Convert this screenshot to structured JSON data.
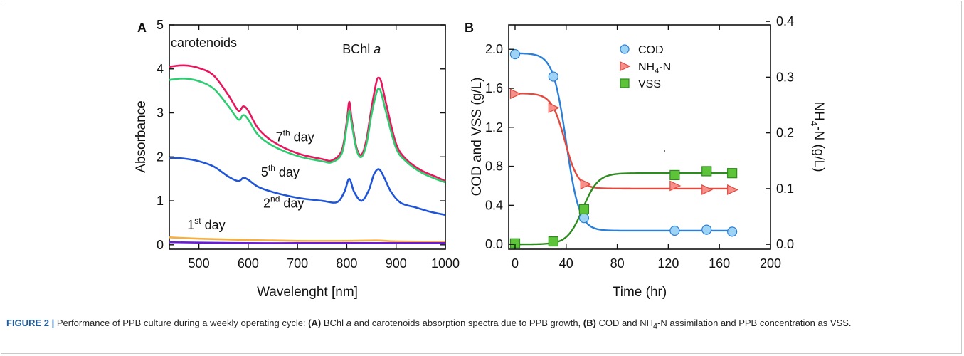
{
  "figure_label": "FIGURE 2 |",
  "caption_segments": [
    {
      "text": " Performance of PPB culture during a weekly operating cycle: ",
      "bold": false
    },
    {
      "text": "(A)",
      "bold": true
    },
    {
      "text": " BChl ",
      "bold": false
    },
    {
      "text": "a",
      "italic": true
    },
    {
      "text": " and carotenoids absorption spectra due to PPB growth, ",
      "bold": false
    },
    {
      "text": "(B)",
      "bold": true
    },
    {
      "text": " COD and NH",
      "bold": false
    },
    {
      "text": "4",
      "sub": true
    },
    {
      "text": "-N assimilation and PPB concentration as VSS.",
      "bold": false
    }
  ],
  "chart_data": [
    {
      "panel": "A",
      "type": "line",
      "xlabel": "Wavelenght [nm]",
      "ylabel": "Absorbance",
      "xlim": [
        440,
        1000
      ],
      "ylim": [
        -0.1,
        5
      ],
      "xticks": [
        500,
        600,
        700,
        800,
        900,
        1000
      ],
      "yticks": [
        0,
        1,
        2,
        3,
        4,
        5
      ],
      "annotations": [
        {
          "text": "carotenoids",
          "x": 510,
          "y": 4.5
        },
        {
          "text": "BChl ",
          "italic_suffix": "a",
          "x": 830,
          "y": 4.35
        },
        {
          "text": "7",
          "sup": "th",
          "suffix": " day",
          "x": 695,
          "y": 2.35
        },
        {
          "text": "5",
          "sup": "th",
          "suffix": " day",
          "x": 665,
          "y": 1.55
        },
        {
          "text": "2",
          "sup": "nd",
          "suffix": " day",
          "x": 672,
          "y": 0.85
        },
        {
          "text": "1",
          "sup": "st",
          "suffix": " day",
          "x": 515,
          "y": 0.35
        }
      ],
      "series": [
        {
          "color": "#e8175d",
          "x": [
            440,
            470,
            500,
            530,
            560,
            580,
            590,
            600,
            620,
            650,
            700,
            750,
            770,
            790,
            800,
            805,
            810,
            820,
            830,
            840,
            850,
            860,
            865,
            870,
            880,
            900,
            920,
            950,
            980,
            1000
          ],
          "y": [
            4.05,
            4.08,
            4.02,
            3.85,
            3.4,
            3.05,
            3.15,
            3.05,
            2.65,
            2.35,
            2.08,
            1.95,
            1.92,
            2.15,
            2.8,
            3.25,
            2.85,
            2.2,
            2.05,
            2.4,
            3.1,
            3.7,
            3.8,
            3.7,
            3.2,
            2.3,
            1.95,
            1.7,
            1.55,
            1.45
          ]
        },
        {
          "color": "#2ecc71",
          "x": [
            440,
            470,
            500,
            530,
            560,
            580,
            590,
            600,
            620,
            650,
            700,
            750,
            770,
            790,
            800,
            805,
            810,
            820,
            830,
            840,
            850,
            860,
            865,
            870,
            880,
            900,
            920,
            950,
            980,
            1000
          ],
          "y": [
            3.75,
            3.78,
            3.72,
            3.55,
            3.15,
            2.85,
            2.95,
            2.85,
            2.5,
            2.25,
            2.02,
            1.9,
            1.88,
            2.08,
            2.7,
            3.05,
            2.75,
            2.15,
            2.0,
            2.3,
            2.95,
            3.45,
            3.55,
            3.45,
            3.0,
            2.2,
            1.9,
            1.65,
            1.5,
            1.42
          ]
        },
        {
          "color": "#1f55d6",
          "x": [
            440,
            470,
            500,
            530,
            560,
            580,
            590,
            600,
            620,
            650,
            700,
            750,
            780,
            795,
            805,
            815,
            830,
            845,
            855,
            865,
            875,
            890,
            910,
            940,
            970,
            1000
          ],
          "y": [
            1.98,
            1.96,
            1.9,
            1.78,
            1.55,
            1.45,
            1.52,
            1.48,
            1.32,
            1.2,
            1.07,
            1.0,
            0.97,
            1.2,
            1.5,
            1.2,
            1.0,
            1.25,
            1.6,
            1.72,
            1.55,
            1.2,
            0.95,
            0.85,
            0.75,
            0.68
          ]
        },
        {
          "color": "#f5b041",
          "x": [
            440,
            500,
            600,
            700,
            800,
            860,
            900,
            1000
          ],
          "y": [
            0.17,
            0.14,
            0.11,
            0.09,
            0.09,
            0.1,
            0.08,
            0.07
          ]
        },
        {
          "color": "#6a1bd6",
          "x": [
            440,
            500,
            600,
            700,
            800,
            900,
            1000
          ],
          "y": [
            0.06,
            0.05,
            0.04,
            0.04,
            0.04,
            0.04,
            0.04
          ]
        }
      ]
    },
    {
      "panel": "B",
      "type": "scatter",
      "xlabel": "Time (hr)",
      "ylabel": "COD and VSS (g/L)",
      "y2label": "NH4-N (g/L)",
      "xlim": [
        -5,
        200
      ],
      "ylim": [
        -0.05,
        2.25
      ],
      "y2lim": [
        -0.00875,
        0.39375
      ],
      "xticks": [
        0,
        40,
        80,
        120,
        160,
        200
      ],
      "yticks": [
        0.0,
        0.4,
        0.8,
        1.2,
        1.6,
        2.0
      ],
      "yticklabels": [
        "0.0",
        "0.4",
        "0.8",
        "1.2",
        "1.6",
        "2.0"
      ],
      "y2ticks": [
        0.0,
        0.1,
        0.2,
        0.3,
        0.4
      ],
      "y2ticklabels": [
        "0.0",
        "0.1",
        "0.2",
        "0.3",
        "0.4"
      ],
      "legend_position": "top-center",
      "series": [
        {
          "name": "COD",
          "marker": "circle",
          "color": "#2b7fd6",
          "fill": "#9dd3f5",
          "axis": "left",
          "x": [
            0,
            30,
            54,
            125,
            150,
            170
          ],
          "y": [
            1.95,
            1.72,
            0.27,
            0.14,
            0.15,
            0.13
          ],
          "fit": {
            "upper": 1.96,
            "lower": 0.14,
            "mid": 40,
            "width": 5.2
          }
        },
        {
          "name": "NH4-N",
          "marker": "triangle-right",
          "color": "#e04a3f",
          "fill": "#f6908a",
          "axis": "right",
          "x": [
            0,
            30,
            55,
            125,
            150,
            170
          ],
          "y": [
            0.27,
            0.245,
            0.108,
            0.105,
            0.098,
            0.098
          ],
          "fit": {
            "upper": 0.271,
            "lower": 0.1,
            "mid": 39,
            "width": 5.2
          }
        },
        {
          "name": "VSS",
          "marker": "square",
          "color": "#2e8b1f",
          "fill": "#5dc43a",
          "axis": "left",
          "x": [
            0,
            30,
            54,
            125,
            150,
            170
          ],
          "y": [
            0.01,
            0.03,
            0.36,
            0.71,
            0.75,
            0.73
          ],
          "fit": {
            "upper": 0.73,
            "lower": 0.0,
            "mid": 53,
            "width": 6
          }
        }
      ]
    }
  ]
}
